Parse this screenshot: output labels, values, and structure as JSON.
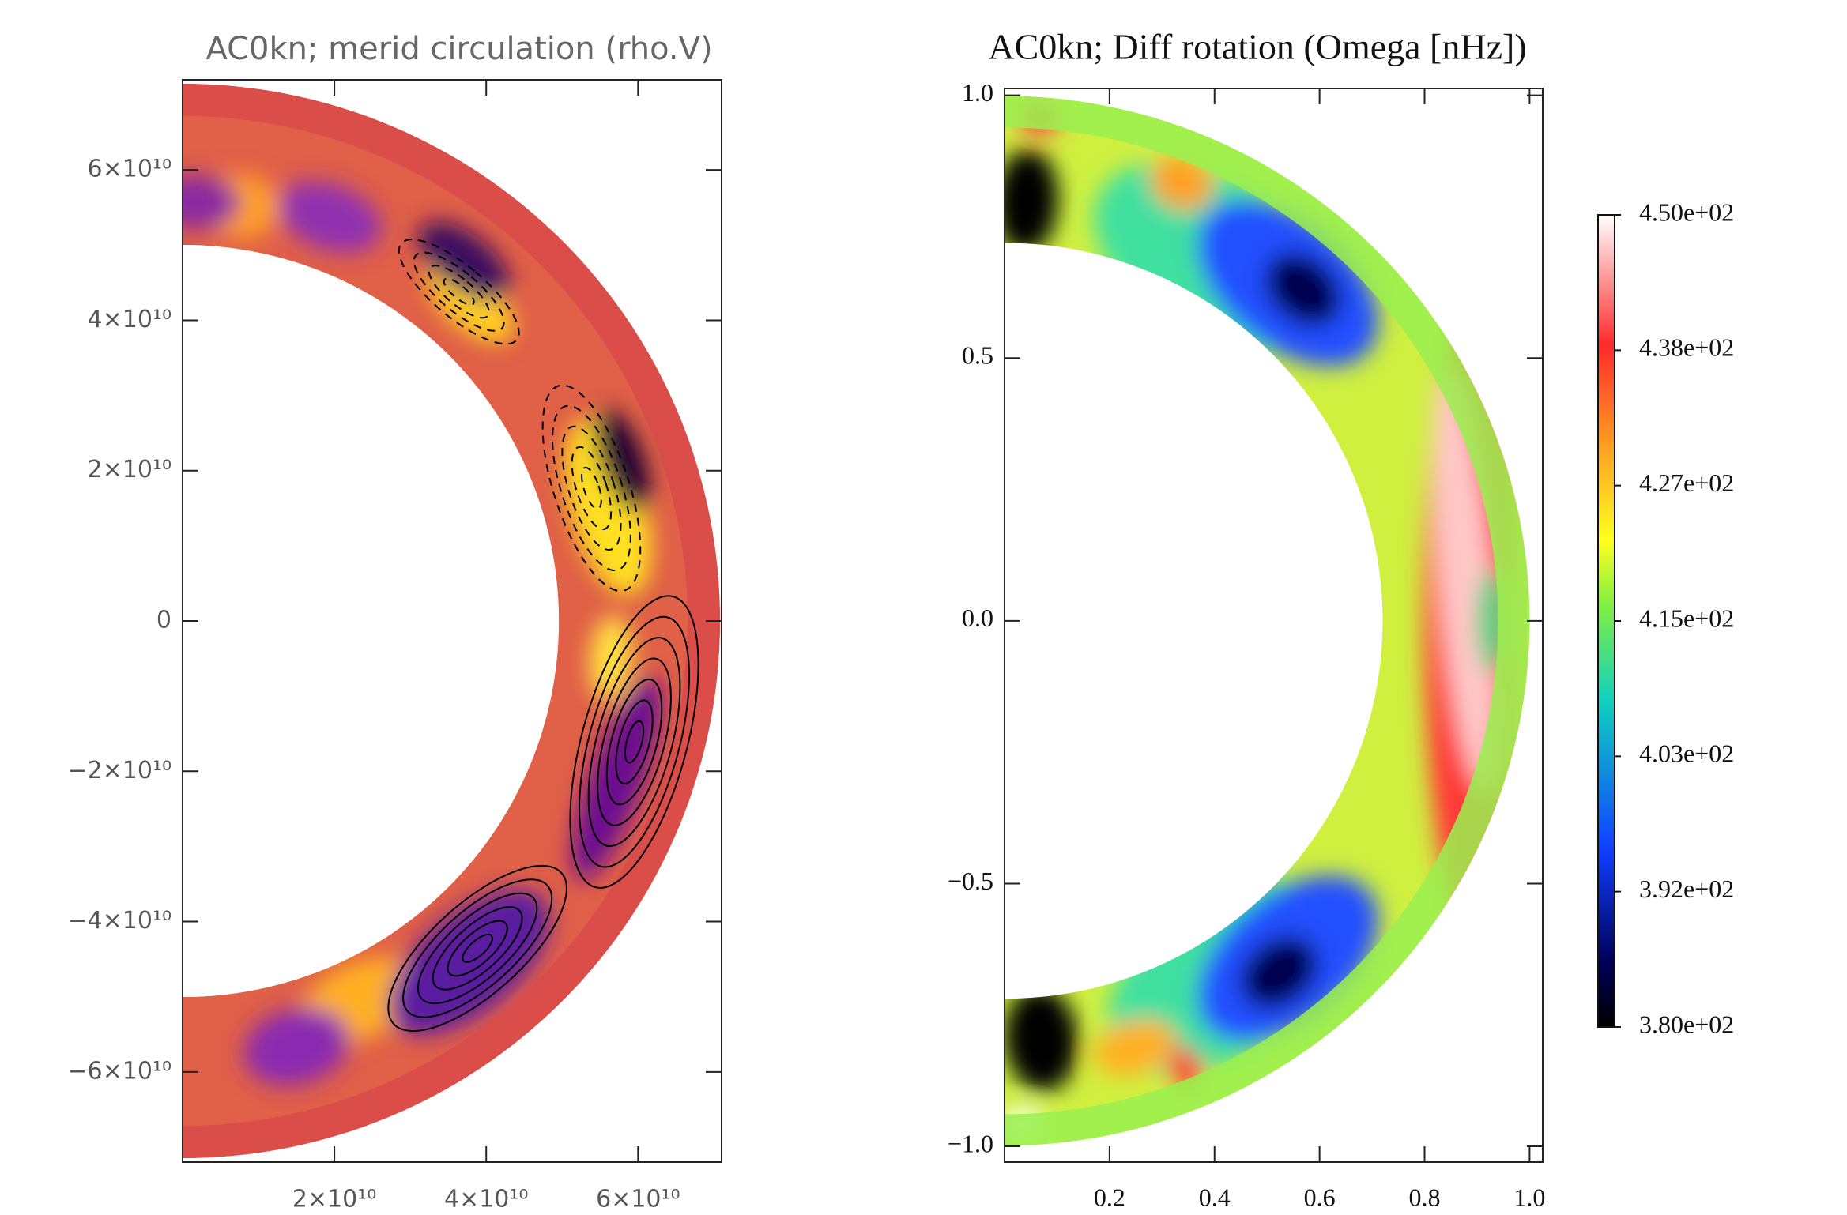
{
  "chart_data": [
    {
      "type": "heatmap",
      "title": "AC0kn; merid circulation (rho.V)",
      "xlim": [
        0,
        71000000000.0
      ],
      "ylim": [
        -72000000000.0,
        72000000000.0
      ],
      "xticks": [
        {
          "value": 20000000000.0,
          "label": "2×10¹⁰"
        },
        {
          "value": 40000000000.0,
          "label": "4×10¹⁰"
        },
        {
          "value": 60000000000.0,
          "label": "6×10¹⁰"
        }
      ],
      "yticks": [
        {
          "value": -60000000000.0,
          "label": "−6×10¹⁰"
        },
        {
          "value": -40000000000.0,
          "label": "−4×10¹⁰"
        },
        {
          "value": -20000000000.0,
          "label": "−2×10¹⁰"
        },
        0,
        {
          "value": 20000000000.0,
          "label": "2×10¹⁰"
        },
        {
          "value": 40000000000.0,
          "label": "4×10¹⁰"
        },
        {
          "value": 60000000000.0,
          "label": "6×10¹⁰"
        }
      ]
    },
    {
      "type": "heatmap",
      "title": "AC0kn; Diff rotation (Omega [nHz])",
      "xlim": [
        0,
        1.025
      ],
      "ylim": [
        -1.03,
        1.013
      ],
      "xticks": [
        0.2,
        0.4,
        0.6,
        0.8,
        {
          "value": 1,
          "label": "1.0"
        }
      ],
      "yticks": [
        {
          "value": -1,
          "label": "−1.0"
        },
        {
          "value": -0.5,
          "label": "−0.5"
        },
        {
          "value": 0,
          "label": "0.0"
        },
        {
          "value": 0.5,
          "label": "0.5"
        },
        {
          "value": 1,
          "label": "1.0"
        }
      ],
      "colorbar": {
        "lim": [
          380,
          450
        ],
        "ticks": [
          {
            "value": 450,
            "label": "4.50e+02"
          },
          {
            "value": 438.33,
            "label": "4.38e+02"
          },
          {
            "value": 426.67,
            "label": "4.27e+02"
          },
          {
            "value": 415,
            "label": "4.15e+02"
          },
          {
            "value": 403.33,
            "label": "4.03e+02"
          },
          {
            "value": 391.67,
            "label": "3.92e+02"
          },
          {
            "value": 380,
            "label": "3.80e+02"
          }
        ]
      }
    }
  ]
}
